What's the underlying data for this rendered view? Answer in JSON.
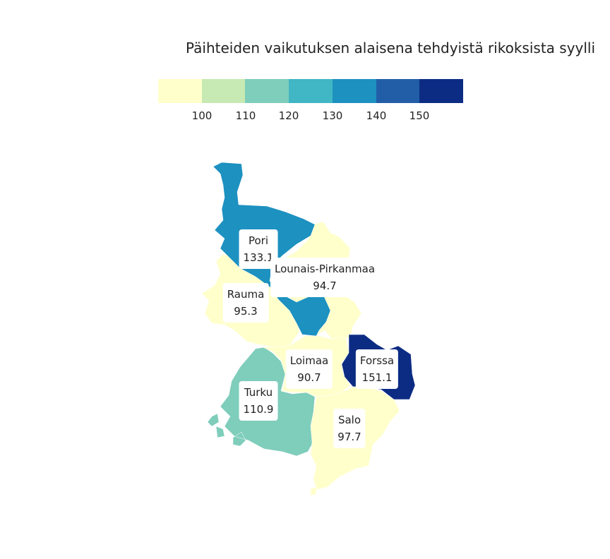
{
  "title": "Päihteiden vaikutuksen alaisena tehdyistä rikoksista syylli",
  "legend": {
    "colors": [
      "#ffffcc",
      "#c7e9b4",
      "#7fcdbb",
      "#41b6c4",
      "#1d91c0",
      "#225ea8",
      "#0c2c84"
    ],
    "ticks": [
      "100",
      "110",
      "120",
      "130",
      "140",
      "150"
    ]
  },
  "regions": [
    {
      "name": "Pori",
      "value": "133.1",
      "color": "#1d91c0"
    },
    {
      "name": "Lounais-Pirkanmaa",
      "value": "94.7",
      "color": "#ffffcc"
    },
    {
      "name": "Rauma",
      "value": "95.3",
      "color": "#ffffcc"
    },
    {
      "name": "Loimaa",
      "value": "90.7",
      "color": "#ffffcc"
    },
    {
      "name": "Forssa",
      "value": "151.1",
      "color": "#0c2c84"
    },
    {
      "name": "Turku",
      "value": "110.9",
      "color": "#7fcdbb"
    },
    {
      "name": "Salo",
      "value": "97.7",
      "color": "#ffffcc"
    }
  ]
}
